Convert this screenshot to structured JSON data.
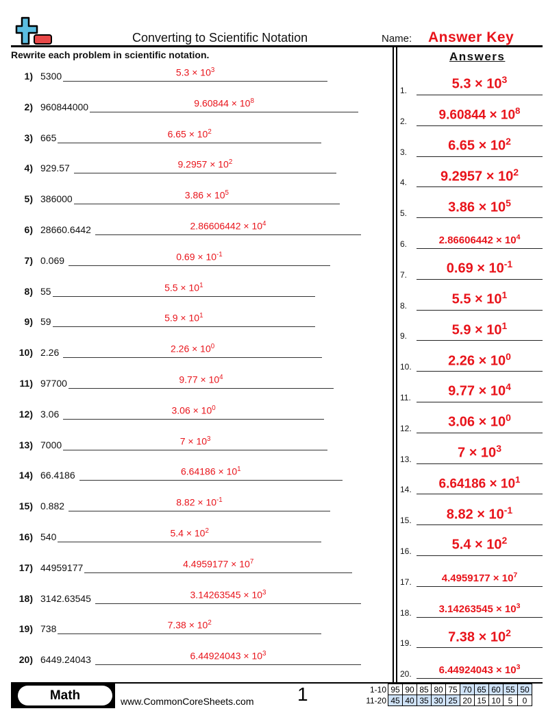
{
  "header": {
    "title": "Converting to Scientific Notation",
    "name_label": "Name:",
    "name_value": "Answer Key",
    "logo": "plus-minus-logo-icon"
  },
  "instructions": "Rewrite each problem in scientific notation.",
  "answers_heading": "Answers",
  "problems": [
    {
      "num": "1)",
      "value": "5300",
      "coef": "5.3",
      "exp": "3"
    },
    {
      "num": "2)",
      "value": "960844000",
      "coef": "9.60844",
      "exp": "8"
    },
    {
      "num": "3)",
      "value": "665",
      "coef": "6.65",
      "exp": "2"
    },
    {
      "num": "4)",
      "value": "929.57",
      "coef": "9.2957",
      "exp": "2"
    },
    {
      "num": "5)",
      "value": "386000",
      "coef": "3.86",
      "exp": "5"
    },
    {
      "num": "6)",
      "value": "28660.6442",
      "coef": "2.86606442",
      "exp": "4"
    },
    {
      "num": "7)",
      "value": "0.069",
      "coef": "0.69",
      "exp": "-1"
    },
    {
      "num": "8)",
      "value": "55",
      "coef": "5.5",
      "exp": "1"
    },
    {
      "num": "9)",
      "value": "59",
      "coef": "5.9",
      "exp": "1"
    },
    {
      "num": "10)",
      "value": "2.26",
      "coef": "2.26",
      "exp": "0"
    },
    {
      "num": "11)",
      "value": "97700",
      "coef": "9.77",
      "exp": "4"
    },
    {
      "num": "12)",
      "value": "3.06",
      "coef": "3.06",
      "exp": "0"
    },
    {
      "num": "13)",
      "value": "7000",
      "coef": "7",
      "exp": "3"
    },
    {
      "num": "14)",
      "value": "66.4186",
      "coef": "6.64186",
      "exp": "1"
    },
    {
      "num": "15)",
      "value": "0.882",
      "coef": "8.82",
      "exp": "-1"
    },
    {
      "num": "16)",
      "value": "540",
      "coef": "5.4",
      "exp": "2"
    },
    {
      "num": "17)",
      "value": "44959177",
      "coef": "4.4959177",
      "exp": "7"
    },
    {
      "num": "18)",
      "value": "3142.63545",
      "coef": "3.14263545",
      "exp": "3"
    },
    {
      "num": "19)",
      "value": "738",
      "coef": "7.38",
      "exp": "2"
    },
    {
      "num": "20)",
      "value": "6449.24043",
      "coef": "6.44924043",
      "exp": "3"
    }
  ],
  "times_ten": " × 10",
  "answer_key_numbers": [
    "1.",
    "2.",
    "3.",
    "4.",
    "5.",
    "6.",
    "7.",
    "8.",
    "9.",
    "10.",
    "11.",
    "12.",
    "13.",
    "14.",
    "15.",
    "16.",
    "17.",
    "18.",
    "19.",
    "20."
  ],
  "footer": {
    "subject": "Math",
    "website": "www.CommonCoreSheets.com",
    "page": "1",
    "score_rows": [
      {
        "label": "1-10",
        "values": [
          "95",
          "90",
          "85",
          "80",
          "75",
          "70",
          "65",
          "60",
          "55",
          "50"
        ]
      },
      {
        "label": "11-20",
        "values": [
          "45",
          "40",
          "35",
          "30",
          "25",
          "20",
          "15",
          "10",
          "5",
          "0"
        ]
      }
    ]
  },
  "colors": {
    "answer": "#e8141b",
    "score_highlight": "#cfe2f7",
    "logo_plus": "#5bbde0",
    "logo_minus": "#e84848"
  }
}
